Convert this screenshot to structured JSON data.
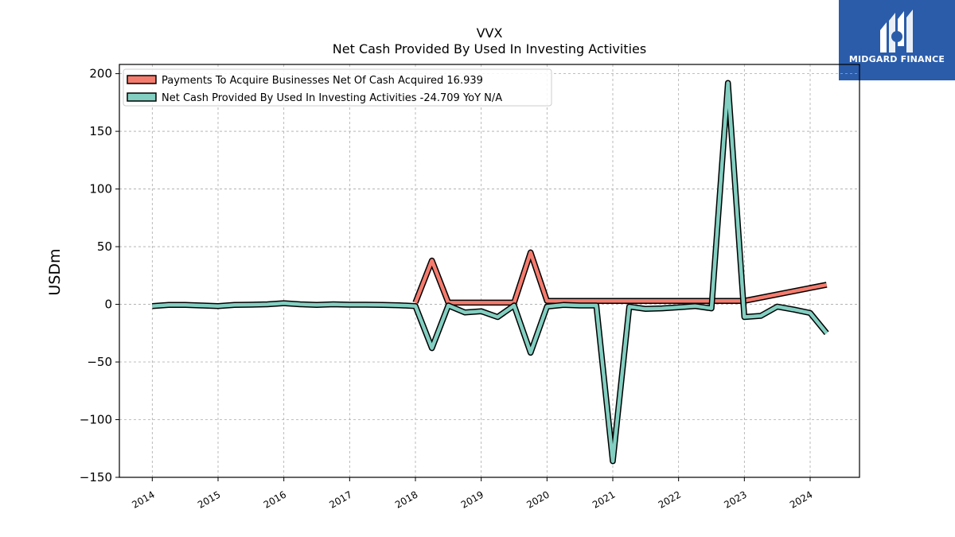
{
  "header": {
    "ticker": "VVX",
    "title": "Net Cash Provided By Used In Investing Activities"
  },
  "logo": {
    "text": "MIDGARD FINANCE",
    "icon": "midgard-m-logo-icon",
    "color": "#2a5caa"
  },
  "chart_data": {
    "type": "line",
    "ylabel": "USDm",
    "ylim": [
      -150,
      208
    ],
    "yticks": [
      -150,
      -100,
      -50,
      0,
      50,
      100,
      150,
      200
    ],
    "xlim": [
      2013.5,
      2024.75
    ],
    "xticks": [
      2014,
      2015,
      2016,
      2017,
      2018,
      2019,
      2020,
      2021,
      2022,
      2023,
      2024
    ],
    "grid": true,
    "legend_position": "top-left",
    "series": [
      {
        "name": "Payments To Acquire Businesses Net Of Cash Acquired  16.939",
        "color": "#f47c6e",
        "x": [
          2018.0,
          2018.25,
          2018.5,
          2018.75,
          2019.0,
          2019.25,
          2019.5,
          2019.75,
          2020.0,
          2023.0,
          2024.25
        ],
        "y": [
          1.5,
          38,
          1.5,
          1.5,
          1.5,
          1.5,
          1.5,
          45,
          3,
          3,
          17
        ]
      },
      {
        "name": "Net Cash Provided By Used In Investing Activities  -24.709 YoY N/A",
        "color": "#83cfc1",
        "x": [
          2014.0,
          2014.25,
          2014.5,
          2014.75,
          2015.0,
          2015.25,
          2015.5,
          2015.75,
          2016.0,
          2016.25,
          2016.5,
          2016.75,
          2017.0,
          2017.25,
          2017.5,
          2017.75,
          2018.0,
          2018.25,
          2018.5,
          2018.75,
          2019.0,
          2019.25,
          2019.5,
          2019.75,
          2020.0,
          2020.25,
          2020.5,
          2020.75,
          2021.0,
          2021.25,
          2021.5,
          2021.75,
          2022.0,
          2022.25,
          2022.5,
          2022.75,
          2023.0,
          2023.25,
          2023.5,
          2023.75,
          2024.0,
          2024.25
        ],
        "y": [
          -1.5,
          -0.5,
          -0.5,
          -1,
          -1.5,
          -0.5,
          -0.3,
          0,
          1,
          0,
          -0.5,
          0,
          -0.3,
          -0.3,
          -0.5,
          -0.8,
          -1.5,
          -38,
          -1,
          -7,
          -6,
          -11,
          -1,
          -42,
          -2,
          -0.5,
          -1,
          -1,
          -136,
          -2,
          -4,
          -3.5,
          -2.5,
          -1.5,
          -3.5,
          192,
          -11,
          -10,
          -2,
          -4.5,
          -7.5,
          -25
        ]
      }
    ]
  }
}
